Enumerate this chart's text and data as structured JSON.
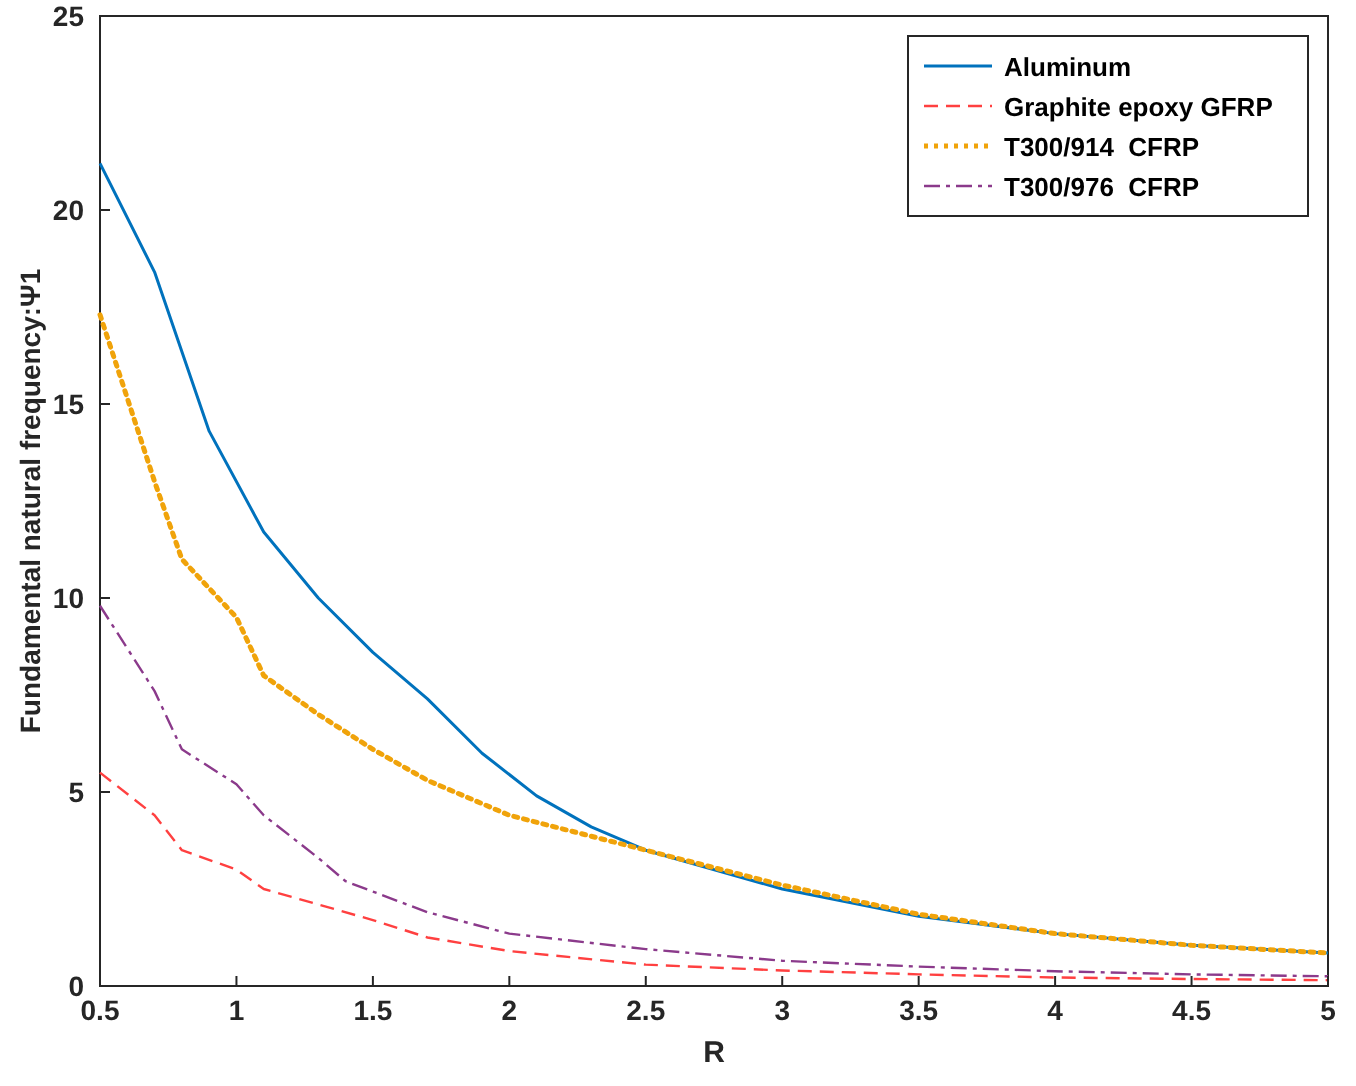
{
  "chart_data": {
    "type": "line",
    "xlabel": "R",
    "ylabel": "Fundamental natural frequency:Ψ1",
    "xlim": [
      0.5,
      5
    ],
    "ylim": [
      0,
      25
    ],
    "xticks": [
      0.5,
      1,
      1.5,
      2,
      2.5,
      3,
      3.5,
      4,
      4.5,
      5
    ],
    "yticks": [
      0,
      5,
      10,
      15,
      20,
      25
    ],
    "legend": "top right",
    "grid": false,
    "series": [
      {
        "name": "Aluminum",
        "color": "#0072bd",
        "line_style": "solid",
        "x": [
          0.5,
          0.7,
          0.9,
          1.1,
          1.3,
          1.5,
          1.7,
          1.9,
          2.1,
          2.3,
          2.5,
          3,
          3.5,
          4,
          4.5,
          5
        ],
        "values": [
          21.2,
          18.4,
          14.3,
          11.7,
          10.0,
          8.6,
          7.4,
          6.0,
          4.9,
          4.1,
          3.5,
          2.5,
          1.8,
          1.35,
          1.05,
          0.85
        ]
      },
      {
        "name": "Graphite epoxy GFRP",
        "color": "#ff4040",
        "line_style": "dashed",
        "x": [
          0.5,
          0.7,
          0.8,
          1,
          1.1,
          1.5,
          1.7,
          2,
          2.5,
          3,
          3.5,
          4,
          4.5,
          5
        ],
        "values": [
          5.5,
          4.4,
          3.5,
          3.0,
          2.5,
          1.7,
          1.25,
          0.9,
          0.55,
          0.4,
          0.3,
          0.22,
          0.18,
          0.15
        ]
      },
      {
        "name": "T300/914  CFRP",
        "color": "#f0a30a",
        "line_style": "dotted",
        "x": [
          0.5,
          0.7,
          0.8,
          1,
          1.1,
          1.3,
          1.5,
          1.7,
          2,
          2.5,
          3,
          3.5,
          4,
          4.5,
          5
        ],
        "values": [
          17.3,
          13.0,
          11.0,
          9.5,
          8.0,
          7.0,
          6.1,
          5.3,
          4.4,
          3.5,
          2.6,
          1.85,
          1.35,
          1.05,
          0.85
        ]
      },
      {
        "name": "T300/976  CFRP",
        "color": "#8b3a8b",
        "line_style": "dashdot",
        "x": [
          0.5,
          0.7,
          0.8,
          1,
          1.1,
          1.3,
          1.4,
          1.7,
          2,
          2.5,
          3,
          3.5,
          4,
          4.5,
          5
        ],
        "values": [
          9.8,
          7.6,
          6.1,
          5.2,
          4.4,
          3.3,
          2.7,
          1.9,
          1.35,
          0.95,
          0.65,
          0.5,
          0.38,
          0.3,
          0.25
        ]
      }
    ]
  }
}
